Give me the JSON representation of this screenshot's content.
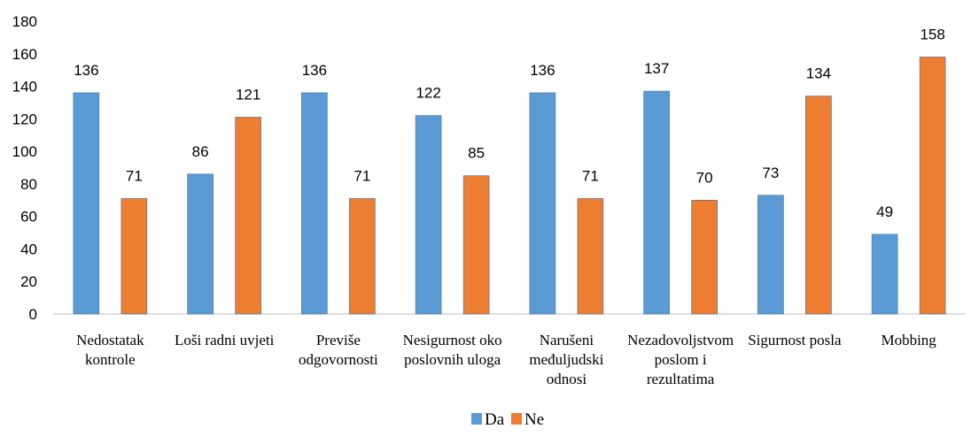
{
  "chart_data": {
    "type": "bar",
    "categories": [
      [
        "Nedostatak",
        "kontrole"
      ],
      [
        "Loši radni uvjeti"
      ],
      [
        "Previše",
        "odgovornosti"
      ],
      [
        "Nesigurnost oko",
        "poslovnih uloga"
      ],
      [
        "Narušeni",
        "međuljudski",
        "odnosi"
      ],
      [
        "Nezadovoljstvom",
        "poslom i",
        "rezultatima"
      ],
      [
        "Sigurnost posla"
      ],
      [
        "Mobbing"
      ]
    ],
    "series": [
      {
        "name": "Da",
        "color": "#5b9bd5",
        "values": [
          136,
          86,
          136,
          122,
          136,
          137,
          73,
          49
        ]
      },
      {
        "name": "Ne",
        "color": "#ed7d31",
        "values": [
          71,
          121,
          71,
          85,
          71,
          70,
          134,
          158
        ]
      }
    ],
    "ylim": [
      0,
      180
    ],
    "yticks": [
      0,
      20,
      40,
      60,
      80,
      100,
      120,
      140,
      160,
      180
    ],
    "grid": false,
    "legend_position": "bottom-center"
  }
}
